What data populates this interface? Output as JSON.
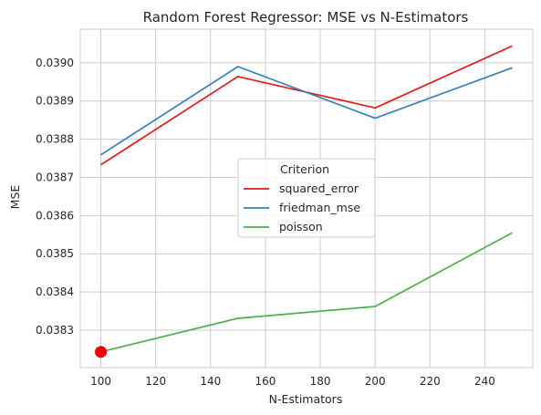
{
  "chart_data": {
    "type": "line",
    "title": "Random Forest Regressor: MSE vs N-Estimators",
    "xlabel": "N-Estimators",
    "ylabel": "MSE",
    "x": [
      100,
      150,
      200,
      250
    ],
    "xlim": [
      92.5,
      257.5
    ],
    "ylim": [
      0.038202,
      0.039088
    ],
    "xticks": [
      "100",
      "120",
      "140",
      "160",
      "180",
      "200",
      "220",
      "240"
    ],
    "yticks": [
      "0.0383",
      "0.0384",
      "0.0385",
      "0.0386",
      "0.0387",
      "0.0388",
      "0.0389",
      "0.0390"
    ],
    "grid": true,
    "legend": {
      "title": "Criterion",
      "placement": "center"
    },
    "series": [
      {
        "name": "squared_error",
        "color": "#e41a1c",
        "values": [
          0.038733,
          0.038964,
          0.038882,
          0.039044
        ]
      },
      {
        "name": "friedman_mse",
        "color": "#377eb8",
        "values": [
          0.038759,
          0.03899,
          0.038855,
          0.038987
        ]
      },
      {
        "name": "poisson",
        "color": "#4daf4a",
        "values": [
          0.038243,
          0.038331,
          0.038362,
          0.038555
        ]
      }
    ],
    "highlight": {
      "x": 100,
      "y": 0.038243,
      "color": "#ee0000"
    }
  }
}
